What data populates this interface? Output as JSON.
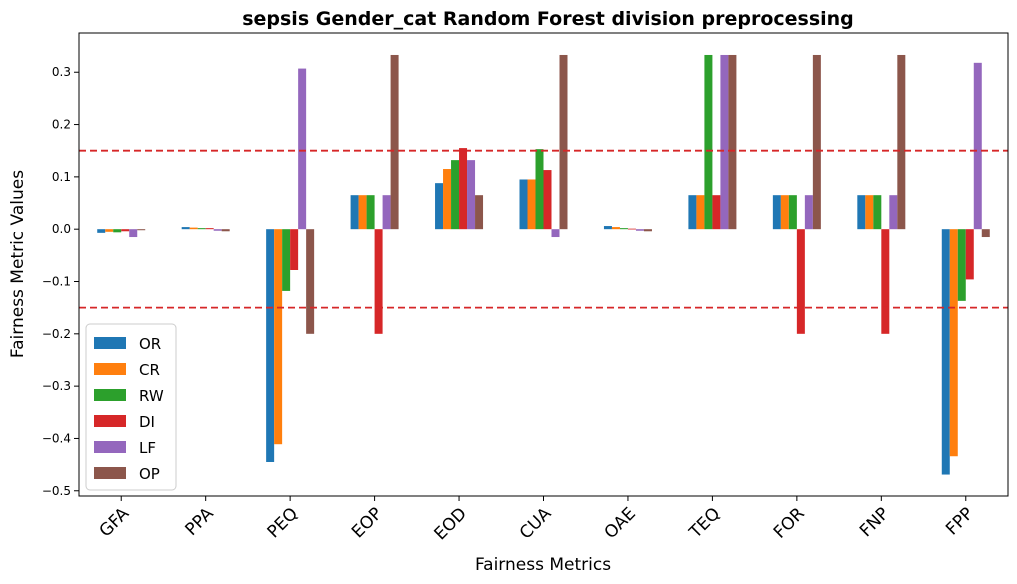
{
  "chart_data": {
    "type": "bar",
    "title": "sepsis Gender_cat Random Forest division preprocessing",
    "xlabel": "Fairness Metrics",
    "ylabel": "Fairness Metric Values",
    "ylim": [
      -0.51,
      0.375
    ],
    "yticks": [
      -0.5,
      -0.4,
      -0.3,
      -0.2,
      -0.1,
      0.0,
      0.1,
      0.2,
      0.3
    ],
    "ytick_labels": [
      "−0.5",
      "−0.4",
      "−0.3",
      "−0.2",
      "−0.1",
      "0.0",
      "0.1",
      "0.2",
      "0.3"
    ],
    "categories": [
      "GFA",
      "PPA",
      "PEQ",
      "EOP",
      "EOD",
      "CUA",
      "OAE",
      "TEQ",
      "FOR",
      "FNP",
      "FPP"
    ],
    "thresholds": [
      0.15,
      -0.15
    ],
    "threshold_color": "#d62728",
    "legend_position": "lower-left",
    "series": [
      {
        "name": "OR",
        "color": "#1f77b4",
        "values": [
          -0.007,
          0.004,
          -0.445,
          0.065,
          0.088,
          0.095,
          0.006,
          0.065,
          0.065,
          0.065,
          -0.469
        ]
      },
      {
        "name": "CR",
        "color": "#ff7f0e",
        "values": [
          -0.005,
          0.003,
          -0.411,
          0.065,
          0.115,
          0.095,
          0.004,
          0.065,
          0.065,
          0.065,
          -0.434
        ]
      },
      {
        "name": "RW",
        "color": "#2ca02c",
        "values": [
          -0.006,
          0.002,
          -0.118,
          0.065,
          0.132,
          0.153,
          0.002,
          0.333,
          0.065,
          0.065,
          -0.137
        ]
      },
      {
        "name": "DI",
        "color": "#d62728",
        "values": [
          -0.004,
          0.002,
          -0.078,
          -0.2,
          0.155,
          0.113,
          0.001,
          0.065,
          -0.2,
          -0.2,
          -0.096
        ]
      },
      {
        "name": "LF",
        "color": "#9467bd",
        "values": [
          -0.015,
          -0.003,
          0.307,
          0.065,
          0.132,
          -0.015,
          -0.003,
          0.333,
          0.065,
          0.065,
          0.318
        ]
      },
      {
        "name": "OP",
        "color": "#8c564b",
        "values": [
          -0.002,
          -0.004,
          -0.2,
          0.333,
          0.065,
          0.333,
          -0.004,
          0.333,
          0.333,
          0.333,
          -0.015
        ]
      }
    ]
  }
}
